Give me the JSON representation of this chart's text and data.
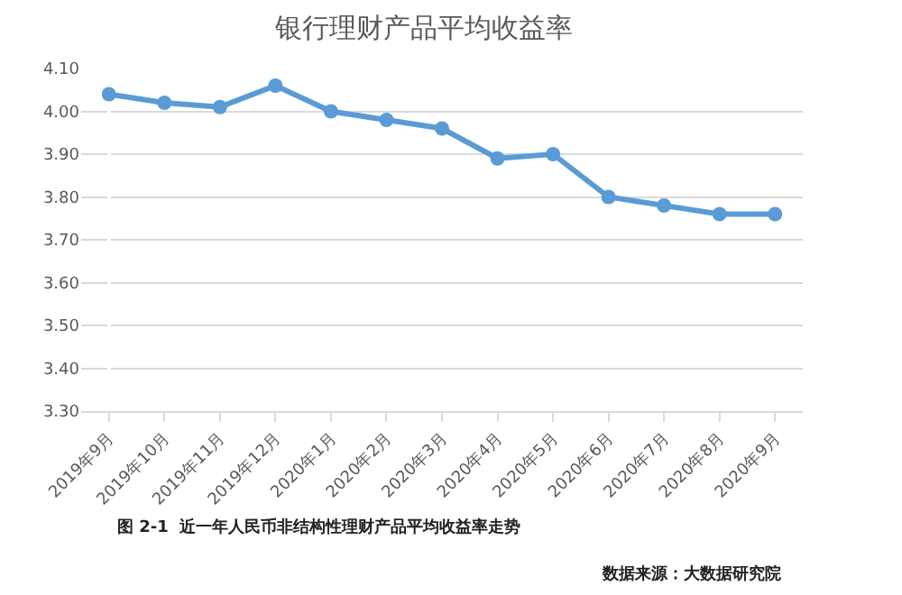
{
  "chart_data": {
    "type": "line",
    "title": "银行理财产品平均收益率",
    "categories": [
      "2019年9月",
      "2019年10月",
      "2019年11月",
      "2019年12月",
      "2020年1月",
      "2020年2月",
      "2020年3月",
      "2020年4月",
      "2020年5月",
      "2020年6月",
      "2020年7月",
      "2020年8月",
      "2020年9月"
    ],
    "series": [
      {
        "color": "#5b9bd5",
        "values": [
          4.04,
          4.02,
          4.01,
          4.06,
          4.0,
          3.98,
          3.96,
          3.89,
          3.9,
          3.8,
          3.78,
          3.76,
          3.76
        ]
      }
    ],
    "ylim": [
      3.3,
      4.1
    ],
    "yticks": [
      {
        "value": 3.3,
        "label": "3.30"
      },
      {
        "value": 3.4,
        "label": "3.40"
      },
      {
        "value": 3.5,
        "label": "3.50"
      },
      {
        "value": 3.6,
        "label": "3.60"
      },
      {
        "value": 3.7,
        "label": "3.70"
      },
      {
        "value": 3.8,
        "label": "3.80"
      },
      {
        "value": 3.9,
        "label": "3.90"
      },
      {
        "value": 4.0,
        "label": "4.00"
      },
      {
        "value": 4.1,
        "label": "4.10"
      }
    ],
    "grid": "y",
    "marker": "circle",
    "line_style": "solid",
    "annotations": [
      "图 2-1  近一年人民币非结构性理财产品平均收益率走势",
      "数据来源：大数据研究院"
    ]
  }
}
